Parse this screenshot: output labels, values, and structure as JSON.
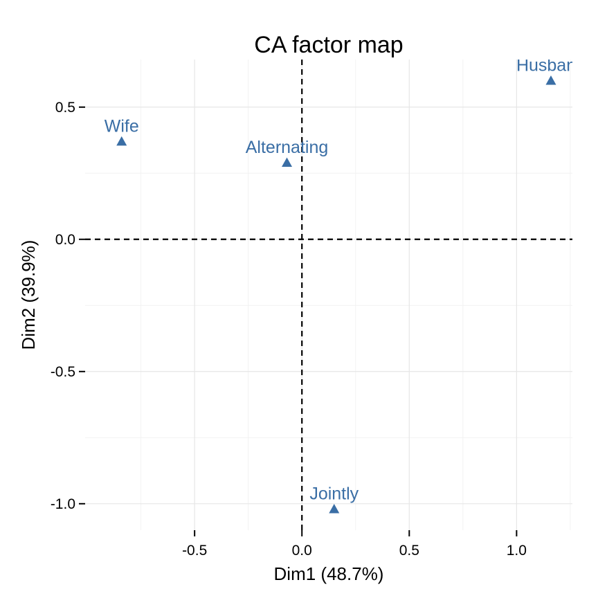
{
  "chart_data": {
    "type": "scatter",
    "title": "CA factor map",
    "xlabel": "Dim1 (48.7%)",
    "ylabel": "Dim2 (39.9%)",
    "xlim": [
      -1.01,
      1.26
    ],
    "ylim": [
      -1.1,
      0.68
    ],
    "xticks": [
      -0.5,
      0.0,
      0.5,
      1.0
    ],
    "xtick_labels": [
      "-0.5",
      "0.0",
      "0.5",
      "1.0"
    ],
    "yticks": [
      -1.0,
      -0.5,
      0.0,
      0.5
    ],
    "ytick_labels": [
      "-1.0",
      "-0.5",
      "0.0",
      "0.5"
    ],
    "grid": true,
    "reference_lines": {
      "x": 0,
      "y": 0,
      "style": "dashed"
    },
    "marker": "triangle",
    "color": "#3a6ea5",
    "points": [
      {
        "label": "Wife",
        "x": -0.84,
        "y": 0.37
      },
      {
        "label": "Alternating",
        "x": -0.07,
        "y": 0.29
      },
      {
        "label": "Husband",
        "x": 1.16,
        "y": 0.6
      },
      {
        "label": "Jointly",
        "x": 0.15,
        "y": -1.02
      }
    ]
  }
}
